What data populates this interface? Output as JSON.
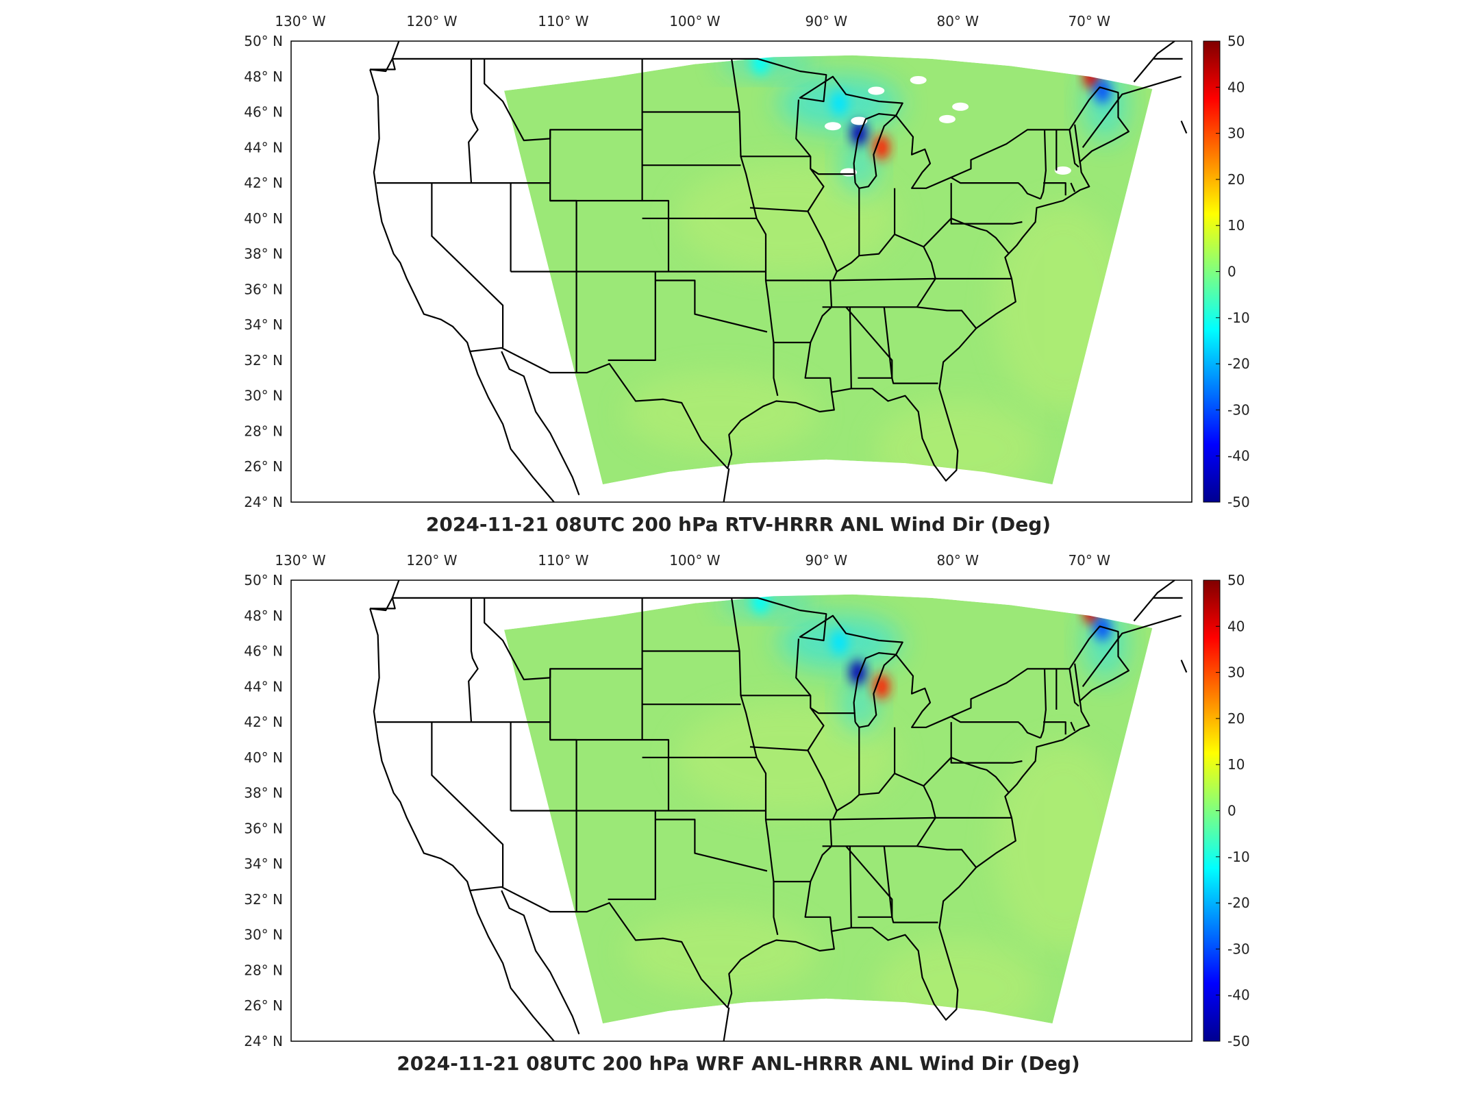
{
  "colors": {
    "background": "#ffffff",
    "land_outline": "#000000",
    "field_base": "#9be877",
    "field_light": "#b8ee73",
    "field_cyan": "#20e0f0",
    "field_blue": "#0030d0",
    "field_red": "#e02010",
    "field_orange": "#ff9000"
  },
  "colorbar": {
    "colormap": "jet",
    "min": -50,
    "max": 50,
    "ticks": [
      "50",
      "40",
      "30",
      "20",
      "10",
      "0",
      "-10",
      "-20",
      "-30",
      "-40",
      "-50"
    ]
  },
  "axes": {
    "lon_ticks": [
      "130",
      "120",
      "110",
      "100",
      "90",
      "80",
      "70"
    ],
    "lat_ticks": [
      "50",
      "48",
      "46",
      "44",
      "42",
      "40",
      "38",
      "36",
      "34",
      "32",
      "30",
      "28",
      "26",
      "24"
    ],
    "lon_suffix": "W",
    "lat_suffix": "N",
    "degree_symbol": "°"
  },
  "panels": [
    {
      "id": "top",
      "title": "2024-11-21 08UTC 200 hPa RTV-HRRR ANL Wind Dir (Deg)",
      "missing_data_patches": true,
      "anomalies": [
        {
          "lon": -87.5,
          "lat": 44.8,
          "value": -45
        },
        {
          "lon": -85.8,
          "lat": 44.0,
          "value": 35
        },
        {
          "lon": -69.8,
          "lat": 48.0,
          "value": 40
        },
        {
          "lon": -69.0,
          "lat": 47.2,
          "value": -30
        },
        {
          "lon": -89.0,
          "lat": 46.5,
          "value": -15
        },
        {
          "lon": -95.0,
          "lat": 48.8,
          "value": -12
        }
      ]
    },
    {
      "id": "bottom",
      "title": "2024-11-21 08UTC 200 hPa WRF ANL-HRRR ANL Wind Dir (Deg)",
      "missing_data_patches": false,
      "anomalies": [
        {
          "lon": -87.6,
          "lat": 44.8,
          "value": -45
        },
        {
          "lon": -85.8,
          "lat": 44.0,
          "value": 35
        },
        {
          "lon": -69.8,
          "lat": 48.2,
          "value": 40
        },
        {
          "lon": -69.0,
          "lat": 47.3,
          "value": -30
        },
        {
          "lon": -89.0,
          "lat": 46.5,
          "value": -15
        },
        {
          "lon": -95.0,
          "lat": 48.8,
          "value": -12
        }
      ]
    }
  ]
}
